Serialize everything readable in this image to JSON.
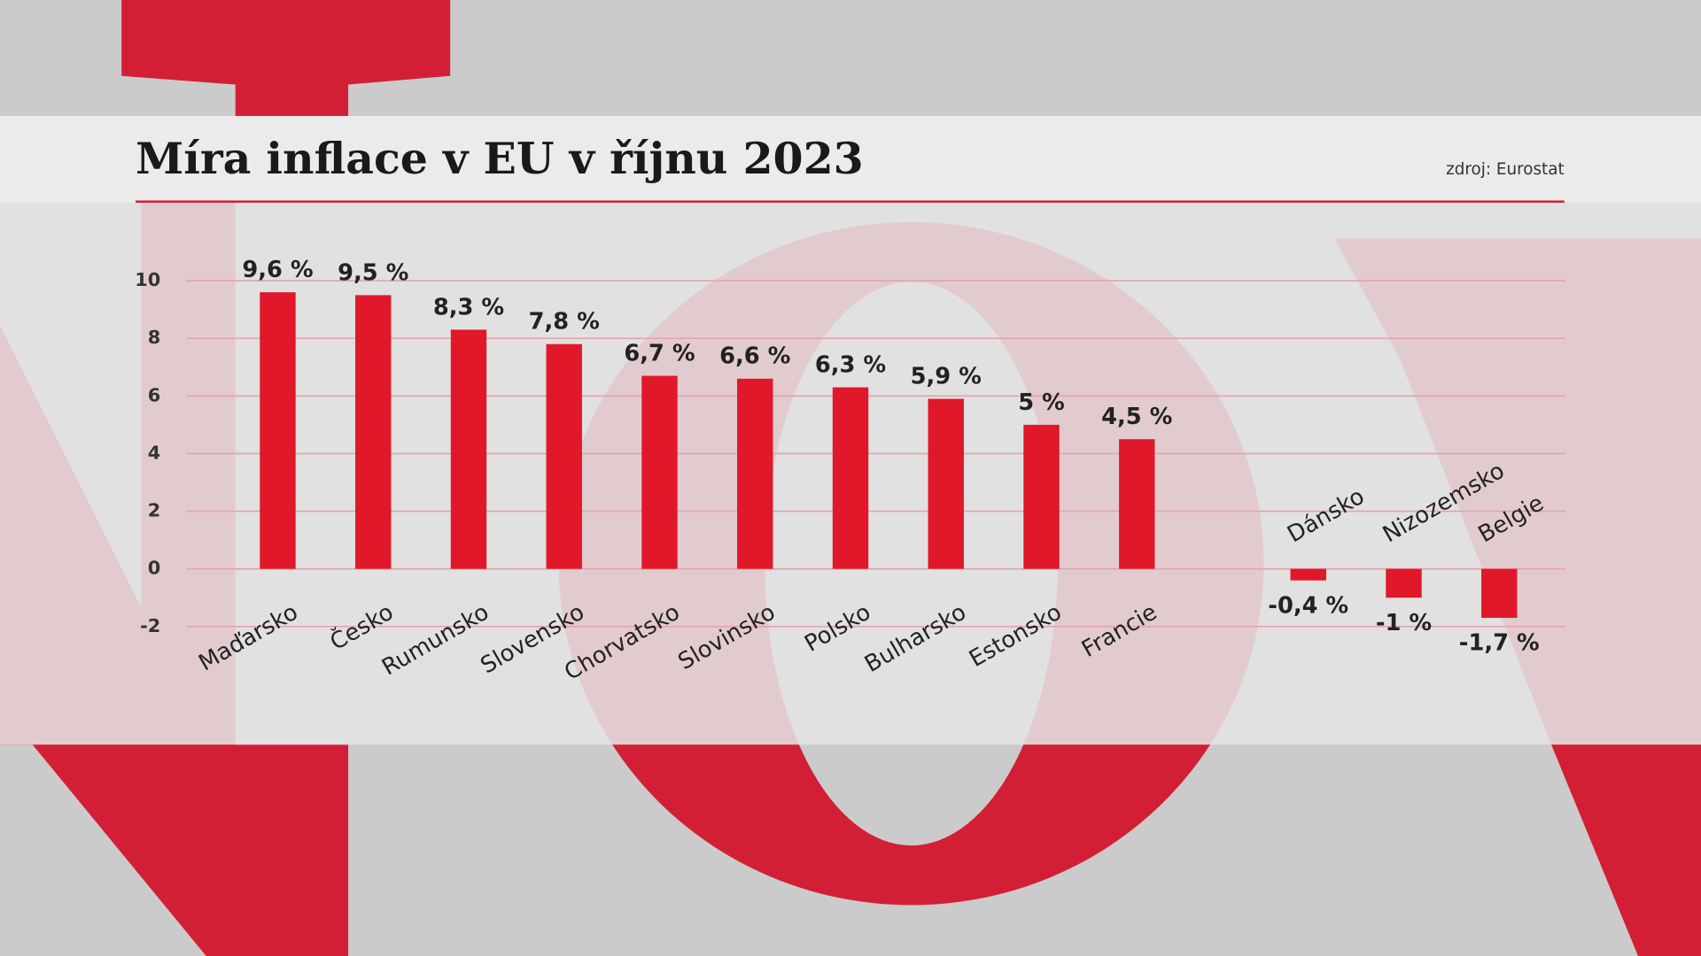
{
  "chart_data": {
    "type": "bar",
    "title": "Míra inflace v EU v říjnu 2023",
    "source": "zdroj: Eurostat",
    "categories": [
      "Maďarsko",
      "Česko",
      "Rumunsko",
      "Slovensko",
      "Chorvatsko",
      "Slovinsko",
      "Polsko",
      "Bulharsko",
      "Estonsko",
      "Francie",
      "Dánsko",
      "Nizozemsko",
      "Belgie"
    ],
    "values": [
      9.6,
      9.5,
      8.3,
      7.8,
      6.7,
      6.6,
      6.3,
      5.9,
      5,
      4.5,
      -0.4,
      -1,
      -1.7
    ],
    "value_labels": [
      "9,6 %",
      "9,5 %",
      "8,3 %",
      "7,8 %",
      "6,7 %",
      "6,6 %",
      "6,3 %",
      "5,9 %",
      "5 %",
      "4,5 %",
      "-0,4 %",
      "-1 %",
      "-1,7 %"
    ],
    "color": "#e0182a",
    "ylim": [
      -2,
      10
    ],
    "yticks": [
      -2,
      0,
      2,
      4,
      6,
      8,
      10
    ],
    "grid": true
  }
}
